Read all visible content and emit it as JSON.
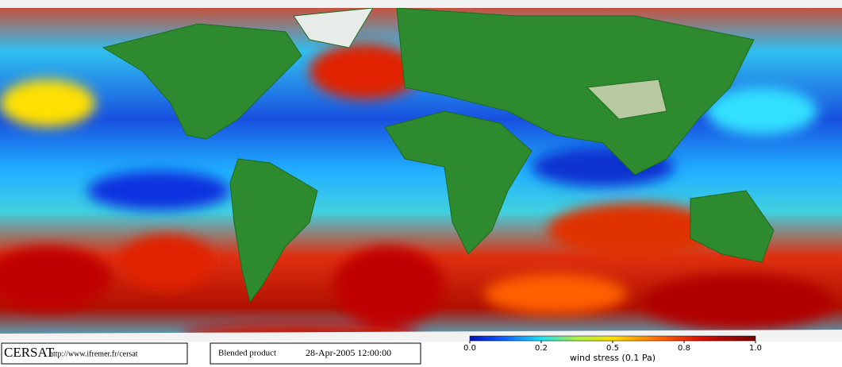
{
  "footer": {
    "logo": "CERSAT",
    "url": "http://www.ifremer.fr/cersat",
    "product": "Blended product",
    "date": "28-Apr-2005 12:00:00"
  },
  "colorbar": {
    "label": "wind stress (0.1 Pa)",
    "ticks": [
      {
        "value": 0,
        "label": "0.0"
      },
      {
        "value": 0.2,
        "label": "0.2"
      },
      {
        "value": 0.5,
        "label": "0.5"
      },
      {
        "value": 0.8,
        "label": "0.8"
      },
      {
        "value": 1,
        "label": "1.0"
      }
    ]
  }
}
